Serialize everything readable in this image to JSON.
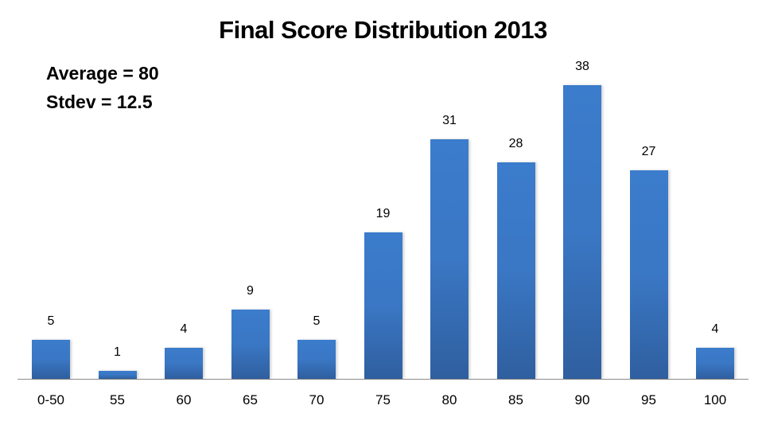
{
  "chart": {
    "title": "Final Score Distribution 2013",
    "stats": {
      "average_label": "Average = 80",
      "stdev_label": "Stdev = 12.5"
    },
    "bar_color_top": "#3b7ccc",
    "bar_color_bottom": "#2f5f9f"
  },
  "chart_data": {
    "type": "bar",
    "title": "Final Score Distribution 2013",
    "xlabel": "",
    "ylabel": "",
    "categories": [
      "0-50",
      "55",
      "60",
      "65",
      "70",
      "75",
      "80",
      "85",
      "90",
      "95",
      "100"
    ],
    "values": [
      5,
      1,
      4,
      9,
      5,
      19,
      31,
      28,
      38,
      27,
      4
    ],
    "data_labels": true,
    "ylim": [
      0,
      38
    ],
    "grid": false,
    "legend": null,
    "annotations": [
      "Average = 80",
      "Stdev = 12.5"
    ]
  }
}
